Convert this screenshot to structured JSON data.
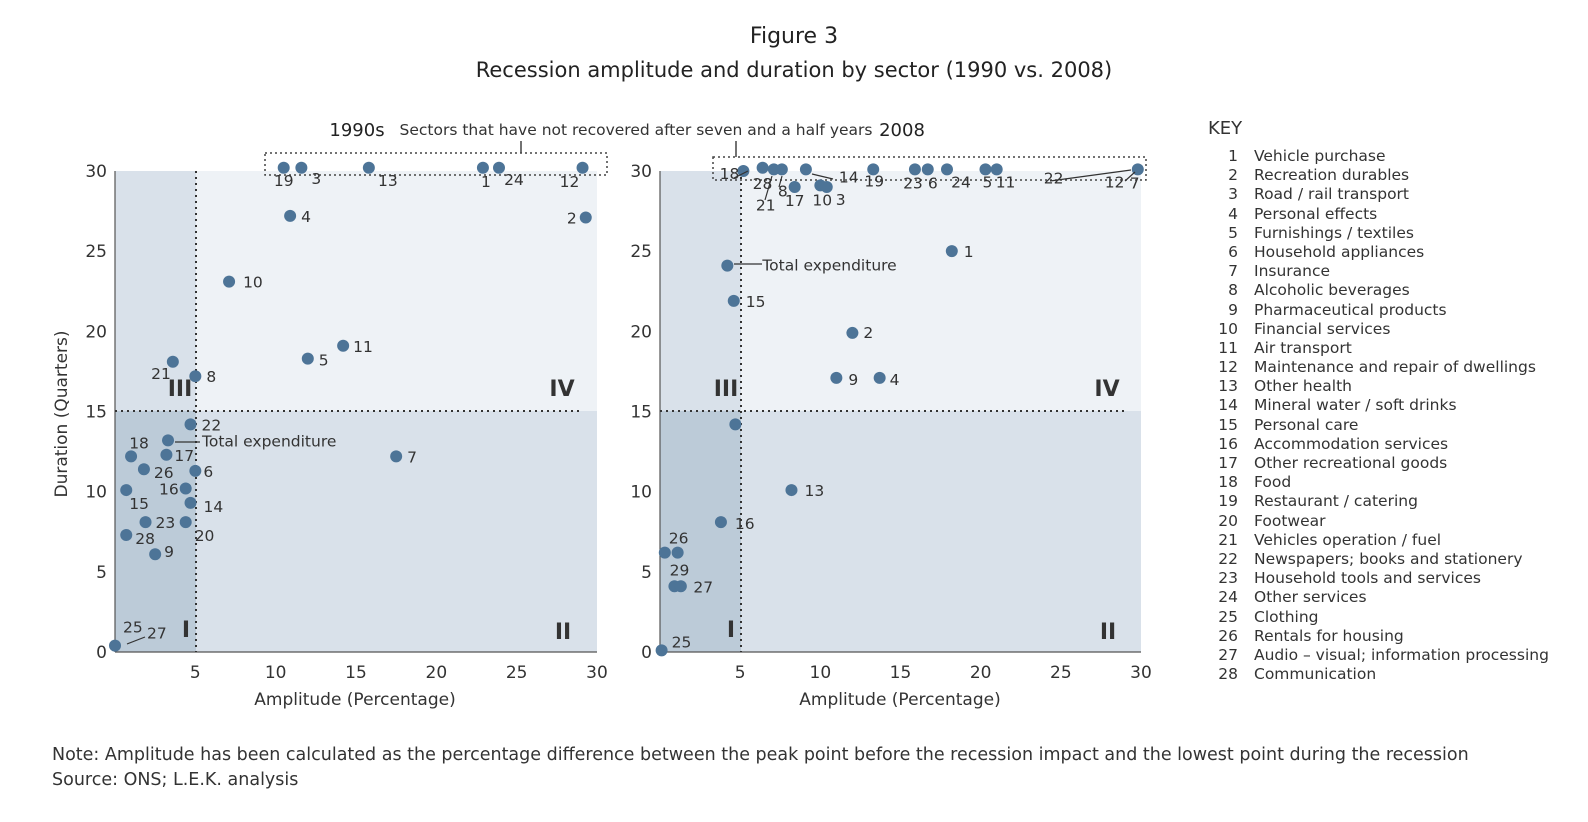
{
  "figure": {
    "title": "Figure 3",
    "subtitle": "Recession amplitude and duration by sector (1990 vs. 2008)"
  },
  "annotation_top": "Sectors that have not recovered after seven and a half years",
  "note": "Note: Amplitude has been calculated as the percentage difference between the peak point before the recession impact and the lowest point during the recession",
  "source": "Source: ONS; L.E.K. analysis",
  "colors": {
    "marker": "#4d7497",
    "quadrant_light": "#eef2f6",
    "quadrant_mid": "#d9e1ea",
    "quadrant_dark": "#bccbd8",
    "text": "#333333"
  },
  "key": {
    "title": "KEY",
    "items": [
      {
        "num": "1",
        "label": "Vehicle purchase"
      },
      {
        "num": "2",
        "label": "Recreation durables"
      },
      {
        "num": "3",
        "label": "Road / rail transport"
      },
      {
        "num": "4",
        "label": "Personal effects"
      },
      {
        "num": "5",
        "label": "Furnishings / textiles"
      },
      {
        "num": "6",
        "label": "Household appliances"
      },
      {
        "num": "7",
        "label": "Insurance"
      },
      {
        "num": "8",
        "label": "Alcoholic beverages"
      },
      {
        "num": "9",
        "label": "Pharmaceutical products"
      },
      {
        "num": "10",
        "label": "Financial services"
      },
      {
        "num": "11",
        "label": "Air transport"
      },
      {
        "num": "12",
        "label": "Maintenance and repair of dwellings"
      },
      {
        "num": "13",
        "label": "Other health"
      },
      {
        "num": "14",
        "label": "Mineral water / soft drinks"
      },
      {
        "num": "15",
        "label": "Personal care"
      },
      {
        "num": "16",
        "label": "Accommodation services"
      },
      {
        "num": "17",
        "label": "Other recreational goods"
      },
      {
        "num": "18",
        "label": "Food"
      },
      {
        "num": "19",
        "label": "Restaurant / catering"
      },
      {
        "num": "20",
        "label": "Footwear"
      },
      {
        "num": "21",
        "label": "Vehicles operation / fuel"
      },
      {
        "num": "22",
        "label": "Newspapers; books and stationery"
      },
      {
        "num": "23",
        "label": "Household tools and services"
      },
      {
        "num": "24",
        "label": "Other services"
      },
      {
        "num": "25",
        "label": "Clothing"
      },
      {
        "num": "26",
        "label": "Rentals for housing"
      },
      {
        "num": "27",
        "label": "Audio – visual; information processing"
      },
      {
        "num": "28",
        "label": "Communication"
      }
    ]
  },
  "chart_data": [
    {
      "type": "scatter",
      "title": "1990s",
      "xlabel": "Amplitude (Percentage)",
      "ylabel": "Duration (Quarters)",
      "xlim": [
        0,
        30
      ],
      "ylim": [
        0,
        30
      ],
      "xticks": [
        5,
        10,
        15,
        20,
        25,
        30
      ],
      "yticks": [
        0,
        5,
        10,
        15,
        20,
        25,
        30
      ],
      "quadrant_labels": [
        "I",
        "II",
        "III",
        "IV"
      ],
      "points": [
        {
          "label": "19",
          "x": 10.5,
          "y": 30.2
        },
        {
          "label": "3",
          "x": 11.6,
          "y": 30.2
        },
        {
          "label": "13",
          "x": 15.8,
          "y": 30.2
        },
        {
          "label": "1",
          "x": 22.9,
          "y": 30.2
        },
        {
          "label": "24",
          "x": 23.9,
          "y": 30.2
        },
        {
          "label": "12",
          "x": 29.1,
          "y": 30.2
        },
        {
          "label": "4",
          "x": 10.9,
          "y": 27.2
        },
        {
          "label": "2",
          "x": 29.3,
          "y": 27.1
        },
        {
          "label": "10",
          "x": 7.1,
          "y": 23.1
        },
        {
          "label": "11",
          "x": 14.2,
          "y": 19.1
        },
        {
          "label": "5",
          "x": 12.0,
          "y": 18.3
        },
        {
          "label": "21",
          "x": 3.6,
          "y": 18.1
        },
        {
          "label": "8",
          "x": 5.0,
          "y": 17.2
        },
        {
          "label": "22",
          "x": 4.7,
          "y": 14.2
        },
        {
          "label": "Total expenditure",
          "x": 3.3,
          "y": 13.2
        },
        {
          "label": "18",
          "x": 1.0,
          "y": 12.2
        },
        {
          "label": "17",
          "x": 3.2,
          "y": 12.3
        },
        {
          "label": "7",
          "x": 17.5,
          "y": 12.2
        },
        {
          "label": "26",
          "x": 1.8,
          "y": 11.4
        },
        {
          "label": "6",
          "x": 5.0,
          "y": 11.3
        },
        {
          "label": "15",
          "x": 0.7,
          "y": 10.1
        },
        {
          "label": "16",
          "x": 4.4,
          "y": 10.2
        },
        {
          "label": "14",
          "x": 4.7,
          "y": 9.3
        },
        {
          "label": "23",
          "x": 1.9,
          "y": 8.1
        },
        {
          "label": "20",
          "x": 4.4,
          "y": 8.1
        },
        {
          "label": "28",
          "x": 0.7,
          "y": 7.3
        },
        {
          "label": "9",
          "x": 2.5,
          "y": 6.1
        },
        {
          "label": "25",
          "x": 0.0,
          "y": 0.4
        },
        {
          "label": "27",
          "x": 0.0,
          "y": 0.4
        }
      ]
    },
    {
      "type": "scatter",
      "title": "2008",
      "xlabel": "Amplitude (Percentage)",
      "ylabel": "",
      "xlim": [
        0,
        30
      ],
      "ylim": [
        0,
        30
      ],
      "xticks": [
        5,
        10,
        15,
        20,
        25,
        30
      ],
      "yticks": [
        0,
        5,
        10,
        15,
        20,
        25,
        30
      ],
      "quadrant_labels": [
        "I",
        "II",
        "III",
        "IV"
      ],
      "points": [
        {
          "label": "18",
          "x": 5.2,
          "y": 30.0
        },
        {
          "label": "28",
          "x": 6.4,
          "y": 30.2
        },
        {
          "label": "21",
          "x": 7.1,
          "y": 30.1
        },
        {
          "label": "8",
          "x": 7.6,
          "y": 30.1
        },
        {
          "label": "17",
          "x": 8.4,
          "y": 29.0
        },
        {
          "label": "10",
          "x": 10.0,
          "y": 29.1
        },
        {
          "label": "3",
          "x": 10.4,
          "y": 29.0
        },
        {
          "label": "14",
          "x": 9.1,
          "y": 30.1
        },
        {
          "label": "19",
          "x": 13.3,
          "y": 30.1
        },
        {
          "label": "23",
          "x": 15.9,
          "y": 30.1
        },
        {
          "label": "6",
          "x": 16.7,
          "y": 30.1
        },
        {
          "label": "24",
          "x": 17.9,
          "y": 30.1
        },
        {
          "label": "5",
          "x": 20.3,
          "y": 30.1
        },
        {
          "label": "11",
          "x": 21.0,
          "y": 30.1
        },
        {
          "label": "22",
          "x": 29.8,
          "y": 30.1
        },
        {
          "label": "12",
          "x": 29.8,
          "y": 30.1
        },
        {
          "label": "7",
          "x": 29.8,
          "y": 30.1
        },
        {
          "label": "Total expenditure",
          "x": 4.2,
          "y": 24.1
        },
        {
          "label": "1",
          "x": 18.2,
          "y": 25.0
        },
        {
          "label": "15",
          "x": 4.6,
          "y": 21.9
        },
        {
          "label": "2",
          "x": 12.0,
          "y": 19.9
        },
        {
          "label": "9",
          "x": 11.0,
          "y": 17.1
        },
        {
          "label": "4",
          "x": 13.7,
          "y": 17.1
        },
        {
          "label": "13",
          "x": 8.2,
          "y": 10.1
        },
        {
          "label": "16",
          "x": 3.8,
          "y": 8.1
        },
        {
          "label": "26",
          "x": 0.3,
          "y": 6.2
        },
        {
          "label": "29",
          "x": 1.1,
          "y": 6.2
        },
        {
          "label": "27",
          "x": 0.9,
          "y": 4.1
        },
        {
          "label": "25",
          "x": 0.1,
          "y": 0.1
        }
      ],
      "unlabeled_points": [
        {
          "x": 4.7,
          "y": 14.2
        },
        {
          "x": 1.3,
          "y": 4.1
        }
      ]
    }
  ]
}
